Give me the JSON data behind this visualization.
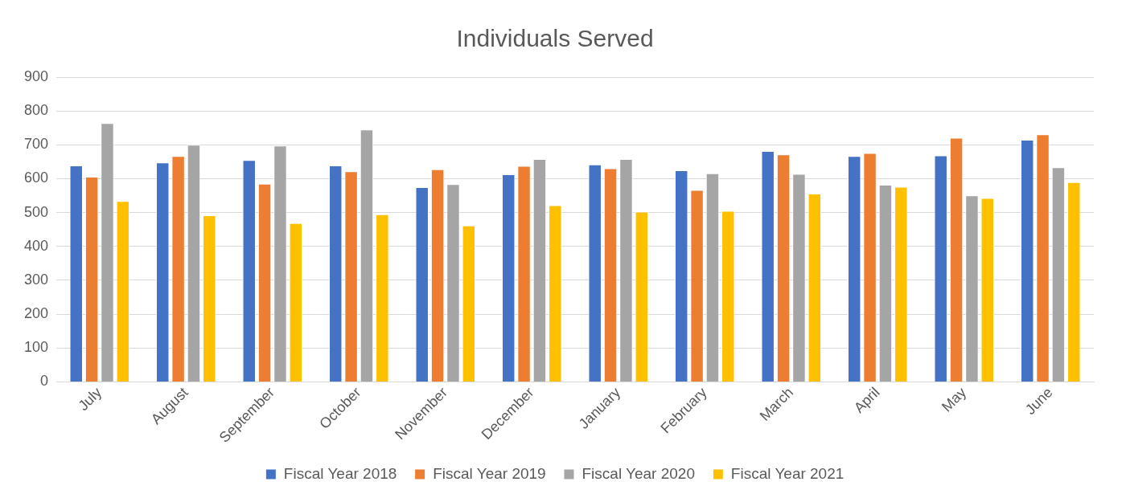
{
  "chart_data": {
    "type": "bar",
    "title": "Individuals Served",
    "categories": [
      "July",
      "August",
      "September",
      "October",
      "November",
      "December",
      "January",
      "February",
      "March",
      "April",
      "May",
      "June"
    ],
    "series": [
      {
        "name": "Fiscal Year 2018",
        "color": "#4472c4",
        "values": [
          639,
          648,
          655,
          639,
          575,
          613,
          642,
          625,
          682,
          667,
          669,
          715
        ]
      },
      {
        "name": "Fiscal Year 2019",
        "color": "#ed7d31",
        "values": [
          606,
          667,
          585,
          622,
          628,
          638,
          631,
          567,
          672,
          676,
          721,
          731
        ]
      },
      {
        "name": "Fiscal Year 2020",
        "color": "#a5a5a5",
        "values": [
          764,
          700,
          698,
          745,
          584,
          658,
          658,
          616,
          614,
          582,
          551,
          634
        ]
      },
      {
        "name": "Fiscal Year 2021",
        "color": "#ffc000",
        "values": [
          534,
          492,
          469,
          495,
          462,
          522,
          503,
          505,
          556,
          576,
          543,
          590
        ]
      }
    ],
    "ylim": [
      0,
      900
    ],
    "yticks": [
      0,
      100,
      200,
      300,
      400,
      500,
      600,
      700,
      800,
      900
    ],
    "grid": "y",
    "legend": "bottom"
  }
}
